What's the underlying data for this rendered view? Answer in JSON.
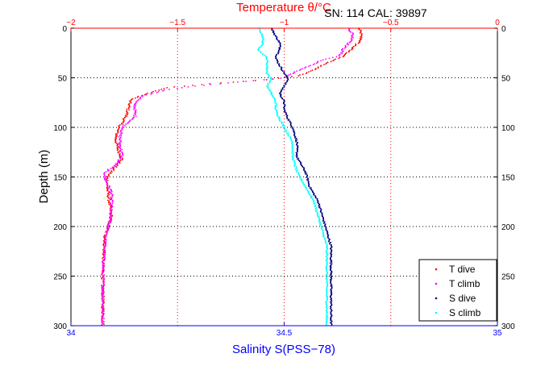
{
  "header": {
    "serial_text": "SN: 114  CAL: 39897"
  },
  "chart_data": {
    "type": "scatter",
    "title": "",
    "ylabel": "Depth (m)",
    "y_reversed": true,
    "ylim": [
      0,
      300
    ],
    "yticks": [
      0,
      50,
      100,
      150,
      200,
      250,
      300
    ],
    "top_axis": {
      "label": "Temperature θ/°C",
      "range": [
        -2,
        0
      ],
      "ticks": [
        -2,
        -1.5,
        -1,
        -0.5,
        0
      ],
      "tick_labels": [
        "−2",
        "−1.5",
        "−1",
        "−0.5",
        "0"
      ]
    },
    "bottom_axis": {
      "label": "Salinity S(PSS−78)",
      "range": [
        34,
        35
      ],
      "ticks": [
        34,
        34.5,
        35
      ],
      "tick_labels": [
        "34",
        "34.5",
        "35"
      ]
    },
    "grid": true,
    "legend_position": "bottom-right",
    "series": [
      {
        "name": "T dive",
        "axis": "temperature",
        "color": "#ff0000",
        "profile": [
          [
            0,
            -0.65
          ],
          [
            5,
            -0.64
          ],
          [
            12,
            -0.64
          ],
          [
            20,
            -0.68
          ],
          [
            28,
            -0.72
          ],
          [
            35,
            -0.8
          ],
          [
            42,
            -0.86
          ],
          [
            48,
            -0.93
          ],
          [
            52,
            -1.08
          ],
          [
            56,
            -1.35
          ],
          [
            60,
            -1.55
          ],
          [
            65,
            -1.63
          ],
          [
            72,
            -1.72
          ],
          [
            80,
            -1.73
          ],
          [
            88,
            -1.74
          ],
          [
            95,
            -1.76
          ],
          [
            102,
            -1.78
          ],
          [
            112,
            -1.79
          ],
          [
            122,
            -1.78
          ],
          [
            132,
            -1.76
          ],
          [
            142,
            -1.8
          ],
          [
            150,
            -1.83
          ],
          [
            160,
            -1.83
          ],
          [
            175,
            -1.82
          ],
          [
            190,
            -1.81
          ],
          [
            210,
            -1.84
          ],
          [
            240,
            -1.85
          ],
          [
            270,
            -1.85
          ],
          [
            300,
            -1.85
          ]
        ]
      },
      {
        "name": "T climb",
        "axis": "temperature",
        "color": "#ff00ff",
        "profile": [
          [
            0,
            -0.7
          ],
          [
            5,
            -0.68
          ],
          [
            12,
            -0.68
          ],
          [
            20,
            -0.72
          ],
          [
            28,
            -0.74
          ],
          [
            32,
            -0.82
          ],
          [
            38,
            -0.88
          ],
          [
            44,
            -0.95
          ],
          [
            50,
            -1.0
          ],
          [
            54,
            -1.2
          ],
          [
            58,
            -1.4
          ],
          [
            62,
            -1.55
          ],
          [
            68,
            -1.66
          ],
          [
            75,
            -1.7
          ],
          [
            82,
            -1.7
          ],
          [
            90,
            -1.7
          ],
          [
            98,
            -1.75
          ],
          [
            108,
            -1.77
          ],
          [
            118,
            -1.77
          ],
          [
            128,
            -1.76
          ],
          [
            138,
            -1.79
          ],
          [
            145,
            -1.84
          ],
          [
            152,
            -1.84
          ],
          [
            165,
            -1.81
          ],
          [
            180,
            -1.81
          ],
          [
            195,
            -1.82
          ],
          [
            215,
            -1.84
          ],
          [
            245,
            -1.85
          ],
          [
            270,
            -1.85
          ],
          [
            300,
            -1.85
          ]
        ]
      },
      {
        "name": "S dive",
        "axis": "salinity",
        "color": "#000080",
        "profile": [
          [
            0,
            34.47
          ],
          [
            8,
            34.48
          ],
          [
            15,
            34.49
          ],
          [
            22,
            34.49
          ],
          [
            30,
            34.48
          ],
          [
            38,
            34.49
          ],
          [
            45,
            34.5
          ],
          [
            52,
            34.51
          ],
          [
            58,
            34.5
          ],
          [
            66,
            34.49
          ],
          [
            74,
            34.5
          ],
          [
            82,
            34.5
          ],
          [
            92,
            34.51
          ],
          [
            100,
            34.52
          ],
          [
            115,
            34.53
          ],
          [
            130,
            34.53
          ],
          [
            145,
            34.55
          ],
          [
            160,
            34.56
          ],
          [
            175,
            34.58
          ],
          [
            190,
            34.59
          ],
          [
            205,
            34.6
          ],
          [
            220,
            34.61
          ],
          [
            240,
            34.61
          ],
          [
            260,
            34.61
          ],
          [
            280,
            34.61
          ],
          [
            300,
            34.61
          ]
        ]
      },
      {
        "name": "S climb",
        "axis": "salinity",
        "color": "#00ffff",
        "profile": [
          [
            0,
            34.44
          ],
          [
            8,
            34.45
          ],
          [
            15,
            34.45
          ],
          [
            22,
            34.44
          ],
          [
            30,
            34.46
          ],
          [
            38,
            34.46
          ],
          [
            45,
            34.46
          ],
          [
            52,
            34.47
          ],
          [
            58,
            34.46
          ],
          [
            66,
            34.47
          ],
          [
            74,
            34.48
          ],
          [
            82,
            34.48
          ],
          [
            92,
            34.49
          ],
          [
            100,
            34.5
          ],
          [
            115,
            34.52
          ],
          [
            130,
            34.52
          ],
          [
            145,
            34.53
          ],
          [
            160,
            34.55
          ],
          [
            175,
            34.57
          ],
          [
            190,
            34.58
          ],
          [
            205,
            34.59
          ],
          [
            220,
            34.6
          ],
          [
            240,
            34.6
          ],
          [
            260,
            34.6
          ],
          [
            280,
            34.6
          ],
          [
            300,
            34.6
          ]
        ]
      }
    ]
  }
}
